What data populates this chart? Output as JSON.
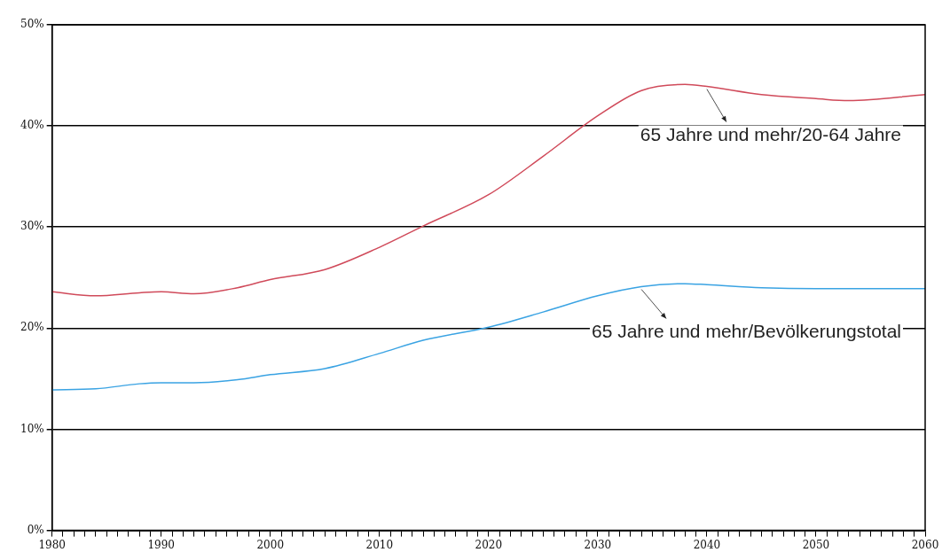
{
  "chart_data": {
    "type": "line",
    "x": [
      1980,
      1984,
      1988,
      1990,
      1993,
      1997,
      2000,
      2005,
      2010,
      2014,
      2020,
      2025,
      2030,
      2034,
      2038,
      2040,
      2045,
      2050,
      2053,
      2060
    ],
    "series": [
      {
        "name": "65 Jahre und mehr/20-64 Jahre",
        "color": "#d04a5a",
        "values": [
          23.6,
          23.2,
          23.5,
          23.6,
          23.4,
          24,
          24.8,
          25.8,
          28,
          30.1,
          33.2,
          37,
          41,
          43.5,
          44.1,
          43.9,
          43.1,
          42.7,
          42.5,
          43.1
        ]
      },
      {
        "name": "65 Jahre und mehr/Bevölkerungstotal",
        "color": "#3aa3e3",
        "values": [
          13.9,
          14,
          14.5,
          14.6,
          14.6,
          14.9,
          15.4,
          16,
          17.5,
          18.8,
          20.1,
          21.6,
          23.2,
          24.1,
          24.4,
          24.3,
          24,
          23.9,
          23.9,
          23.9
        ]
      }
    ],
    "xlim": [
      1980,
      2060
    ],
    "xticks": [
      1980,
      {
        "value": 1981,
        "label": null
      },
      {
        "value": 1982,
        "label": null
      },
      {
        "value": 1983,
        "label": null
      },
      {
        "value": 1984,
        "label": null
      },
      {
        "value": 1985,
        "label": null
      },
      {
        "value": 1986,
        "label": null
      },
      {
        "value": 1987,
        "label": null
      },
      {
        "value": 1988,
        "label": null
      },
      {
        "value": 1989,
        "label": null
      },
      1990,
      {
        "value": 1991,
        "label": null
      },
      {
        "value": 1992,
        "label": null
      },
      {
        "value": 1993,
        "label": null
      },
      {
        "value": 1994,
        "label": null
      },
      {
        "value": 1995,
        "label": null
      },
      {
        "value": 1996,
        "label": null
      },
      {
        "value": 1997,
        "label": null
      },
      {
        "value": 1998,
        "label": null
      },
      {
        "value": 1999,
        "label": null
      },
      2000,
      {
        "value": 2001,
        "label": null
      },
      {
        "value": 2002,
        "label": null
      },
      {
        "value": 2003,
        "label": null
      },
      {
        "value": 2004,
        "label": null
      },
      {
        "value": 2005,
        "label": null
      },
      {
        "value": 2006,
        "label": null
      },
      {
        "value": 2007,
        "label": null
      },
      {
        "value": 2008,
        "label": null
      },
      {
        "value": 2009,
        "label": null
      },
      2010,
      {
        "value": 2011,
        "label": null
      },
      {
        "value": 2012,
        "label": null
      },
      {
        "value": 2013,
        "label": null
      },
      {
        "value": 2014,
        "label": null
      },
      {
        "value": 2015,
        "label": null
      },
      {
        "value": 2016,
        "label": null
      },
      {
        "value": 2017,
        "label": null
      },
      {
        "value": 2018,
        "label": null
      },
      {
        "value": 2019,
        "label": null
      },
      2020,
      {
        "value": 2021,
        "label": null
      },
      {
        "value": 2022,
        "label": null
      },
      {
        "value": 2023,
        "label": null
      },
      {
        "value": 2024,
        "label": null
      },
      {
        "value": 2025,
        "label": null
      },
      {
        "value": 2026,
        "label": null
      },
      {
        "value": 2027,
        "label": null
      },
      {
        "value": 2028,
        "label": null
      },
      {
        "value": 2029,
        "label": null
      },
      2030,
      {
        "value": 2031,
        "label": null
      },
      {
        "value": 2032,
        "label": null
      },
      {
        "value": 2033,
        "label": null
      },
      {
        "value": 2034,
        "label": null
      },
      {
        "value": 2035,
        "label": null
      },
      {
        "value": 2036,
        "label": null
      },
      {
        "value": 2037,
        "label": null
      },
      {
        "value": 2038,
        "label": null
      },
      {
        "value": 2039,
        "label": null
      },
      2040,
      {
        "value": 2041,
        "label": null
      },
      {
        "value": 2042,
        "label": null
      },
      {
        "value": 2043,
        "label": null
      },
      {
        "value": 2044,
        "label": null
      },
      {
        "value": 2045,
        "label": null
      },
      {
        "value": 2046,
        "label": null
      },
      {
        "value": 2047,
        "label": null
      },
      {
        "value": 2048,
        "label": null
      },
      {
        "value": 2049,
        "label": null
      },
      2050,
      {
        "value": 2051,
        "label": null
      },
      {
        "value": 2052,
        "label": null
      },
      {
        "value": 2053,
        "label": null
      },
      {
        "value": 2054,
        "label": null
      },
      {
        "value": 2055,
        "label": null
      },
      {
        "value": 2056,
        "label": null
      },
      {
        "value": 2057,
        "label": null
      },
      {
        "value": 2058,
        "label": null
      },
      {
        "value": 2059,
        "label": null
      },
      2060
    ],
    "ylim": [
      0,
      50
    ],
    "yticks": [
      {
        "value": 0,
        "label": "0%"
      },
      {
        "value": 10,
        "label": "10%"
      },
      {
        "value": 20,
        "label": "20%"
      },
      {
        "value": 30,
        "label": "30%"
      },
      {
        "value": 40,
        "label": "40%"
      },
      {
        "value": 50,
        "label": "50%"
      }
    ],
    "grid": "y",
    "legend": false,
    "marker": "none",
    "line_style": "solid"
  }
}
